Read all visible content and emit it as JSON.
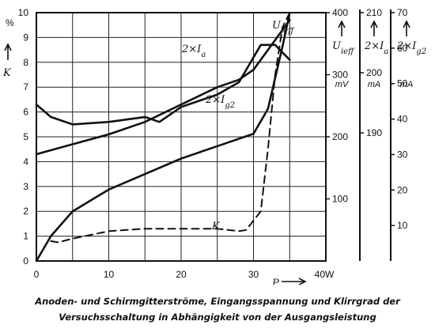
{
  "chart_data": {
    "type": "line",
    "x_axis": {
      "label": "P",
      "unit": "W",
      "range": [
        0,
        40
      ],
      "ticks": [
        0,
        10,
        20,
        30,
        40
      ],
      "tick_labels": [
        "0",
        "10",
        "20",
        "30",
        "40W"
      ]
    },
    "axes": {
      "K": {
        "label": "K",
        "unit": "%",
        "range": [
          0,
          10
        ],
        "ticks": [
          0,
          1,
          2,
          3,
          4,
          5,
          6,
          7,
          8,
          9,
          10
        ],
        "tick_labels": [
          "0",
          "1",
          "2",
          "3",
          "4",
          "5",
          "6",
          "7",
          "8",
          "9",
          "10"
        ],
        "unit_label": "%"
      },
      "Ueff": {
        "label": "U",
        "sub": "ieff",
        "unit": "mV",
        "range": [
          0,
          400
        ],
        "ticks": [
          100,
          200,
          300,
          400
        ],
        "tick_labels": [
          "100",
          "200",
          "300",
          "400"
        ],
        "unit_label": "mV"
      },
      "Ia": {
        "label": "2×I",
        "sub": "a",
        "unit": "mA",
        "ticks": [
          190,
          200,
          210
        ],
        "tick_labels": [
          "190",
          "200",
          "210"
        ],
        "unit_label": "mA"
      },
      "Ig2": {
        "label": "2×I",
        "sub": "g2",
        "unit": "mA",
        "range": [
          0,
          70
        ],
        "ticks": [
          10,
          20,
          30,
          40,
          50,
          60,
          70
        ],
        "tick_labels": [
          "10",
          "20",
          "30",
          "40",
          "50",
          "60",
          "70"
        ],
        "unit_label": "mA"
      }
    },
    "series": [
      {
        "name": "U_ieff",
        "label_main": "U",
        "label_sub": "ieff",
        "axis": "Ueff",
        "style": "solid",
        "x": [
          0,
          2,
          5,
          10,
          15,
          20,
          25,
          30,
          32,
          34,
          35
        ],
        "y": [
          0,
          40,
          80,
          115,
          140,
          165,
          185,
          205,
          245,
          345,
          400
        ]
      },
      {
        "name": "2×I_a",
        "label_main": "2×I",
        "label_sub": "a",
        "axis": "K",
        "style": "solid",
        "x": [
          0,
          2,
          5,
          10,
          15,
          17,
          20,
          25,
          28,
          31,
          33,
          35
        ],
        "y": [
          6.3,
          5.8,
          5.5,
          5.6,
          5.8,
          5.6,
          6.2,
          6.7,
          7.2,
          8.7,
          8.7,
          8.1
        ]
      },
      {
        "name": "2×I_g2",
        "label_main": "2×I",
        "label_sub": "g2",
        "axis": "K",
        "style": "solid",
        "x": [
          0,
          5,
          10,
          15,
          20,
          25,
          28,
          30,
          32,
          34,
          35
        ],
        "y": [
          4.3,
          4.7,
          5.1,
          5.6,
          6.3,
          7.0,
          7.3,
          7.7,
          8.5,
          9.3,
          9.7
        ]
      },
      {
        "name": "K",
        "label_main": "K",
        "label_sub": "",
        "axis": "K",
        "style": "dashed",
        "x": [
          2,
          3,
          5,
          10,
          15,
          20,
          25,
          28,
          29,
          31,
          32,
          33,
          34,
          35
        ],
        "y": [
          0.8,
          0.75,
          0.9,
          1.2,
          1.3,
          1.3,
          1.3,
          1.2,
          1.25,
          2.0,
          4.5,
          7.5,
          9.4,
          10.0
        ]
      }
    ]
  },
  "caption": {
    "line1": "Anoden- und Schirmgitterströme, Eingangsspannung und Klirrgrad der",
    "line2": "Versuchsschaltung in Abhängigkeit von der Ausgangsleistung"
  }
}
